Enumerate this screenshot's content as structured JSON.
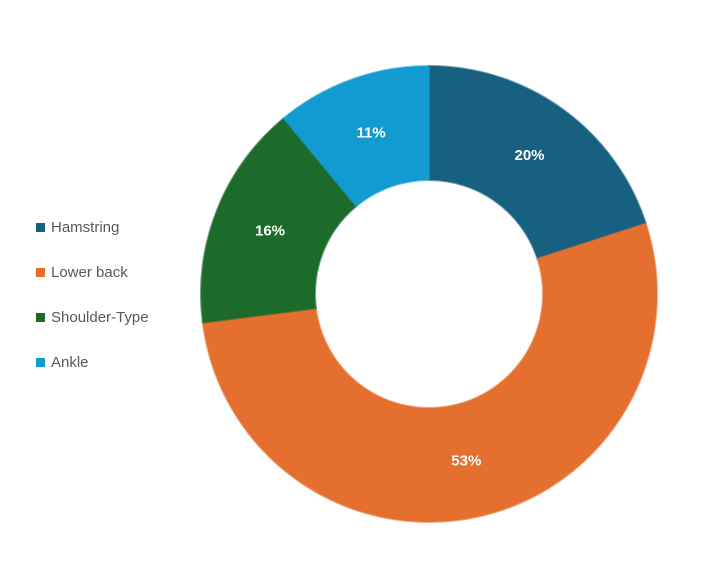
{
  "chart_data": {
    "type": "pie",
    "variant": "doughnut",
    "title": "",
    "categories": [
      "Hamstring",
      "Lower back",
      "Shoulder-Type",
      "Ankle"
    ],
    "values": [
      20,
      53,
      16,
      11
    ],
    "data_labels": [
      "20%",
      "53%",
      "16%",
      "11%"
    ],
    "colors": [
      "#17607F",
      "#E46F2E",
      "#1D6B2A",
      "#119BD0"
    ],
    "legend_position": "left",
    "start_angle_deg": 0,
    "direction": "clockwise"
  }
}
